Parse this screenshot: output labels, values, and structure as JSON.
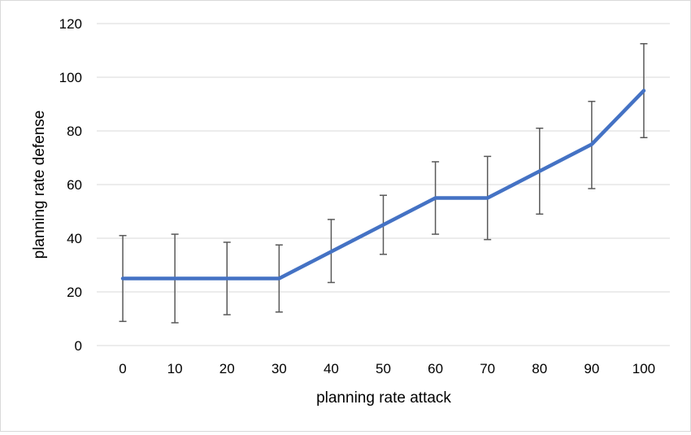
{
  "chart_data": {
    "type": "line",
    "xlabel": "planning rate attack",
    "ylabel": "planning rate defense",
    "categories": [
      "0",
      "10",
      "20",
      "30",
      "40",
      "50",
      "60",
      "70",
      "80",
      "90",
      "100"
    ],
    "series": [
      {
        "values": [
          25,
          25,
          25,
          25,
          35,
          45,
          55,
          55,
          65,
          75,
          95
        ],
        "error_low": [
          9,
          8.5,
          11.5,
          12.5,
          23.5,
          34,
          41.5,
          39.5,
          49,
          58.5,
          77.5
        ],
        "error_high": [
          41,
          41.5,
          38.5,
          37.5,
          47,
          56,
          68.5,
          70.5,
          81,
          91,
          112.5
        ],
        "color": "#4472C4"
      }
    ],
    "ylim": [
      0,
      120
    ],
    "yticks": [
      "0",
      "20",
      "40",
      "60",
      "80",
      "100",
      "120"
    ],
    "grid": true,
    "legend": "none"
  }
}
